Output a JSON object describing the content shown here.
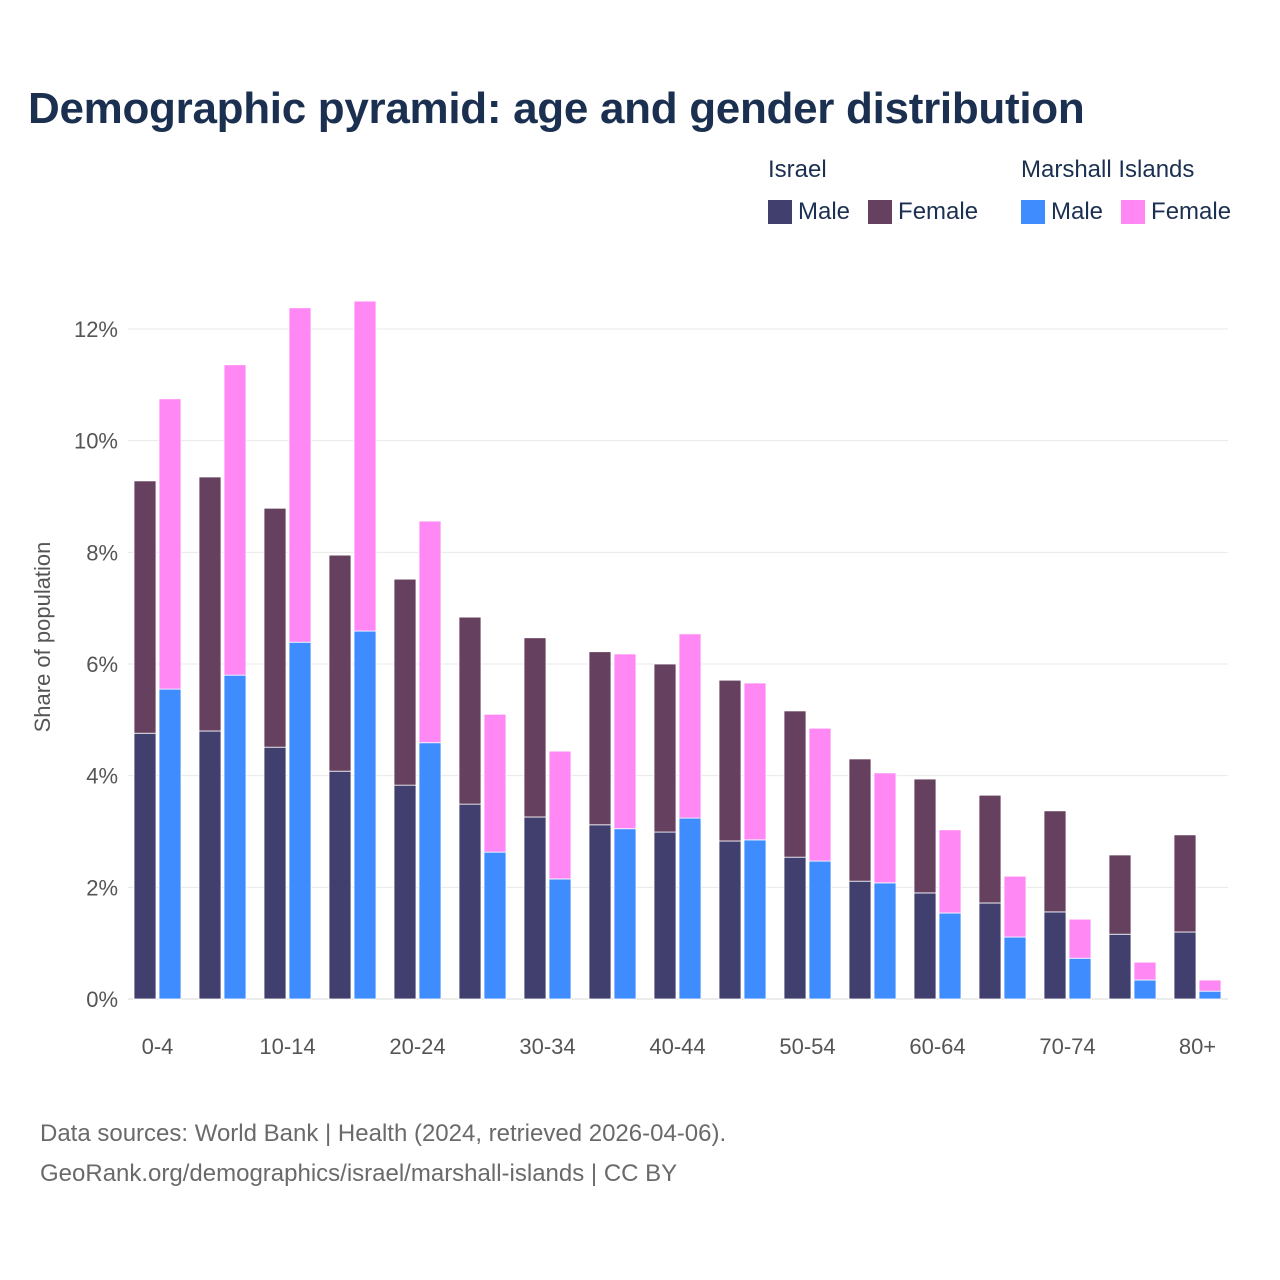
{
  "chart_data": {
    "type": "bar",
    "title": "Demographic pyramid: age and gender distribution",
    "ylabel": "Share of population",
    "xlabel": "",
    "ylim": [
      0,
      12.5
    ],
    "y_ticks": [
      0,
      2,
      4,
      6,
      8,
      10,
      12
    ],
    "y_tick_labels": [
      "0%",
      "2%",
      "4%",
      "6%",
      "8%",
      "10%",
      "12%"
    ],
    "grid": true,
    "legend_placement": "top-right",
    "categories": [
      "0-4",
      "5-9",
      "10-14",
      "15-19",
      "20-24",
      "25-29",
      "30-34",
      "35-39",
      "40-44",
      "45-49",
      "50-54",
      "55-59",
      "60-64",
      "65-69",
      "70-74",
      "75-79",
      "80+"
    ],
    "x_tick_labels": [
      "0-4",
      "10-14",
      "20-24",
      "30-34",
      "40-44",
      "50-54",
      "60-64",
      "70-74",
      "80+"
    ],
    "stacked": true,
    "countries": [
      {
        "name": "Israel",
        "series": [
          {
            "name": "Male",
            "color": "#413f6e",
            "values": [
              4.76,
              4.8,
              4.51,
              4.08,
              3.83,
              3.49,
              3.26,
              3.12,
              2.99,
              2.83,
              2.54,
              2.11,
              1.9,
              1.72,
              1.56,
              1.16,
              1.2
            ]
          },
          {
            "name": "Female",
            "color": "#66405f",
            "values": [
              4.52,
              4.55,
              4.28,
              3.87,
              3.69,
              3.35,
              3.21,
              3.1,
              3.01,
              2.88,
              2.62,
              2.19,
              2.04,
              1.93,
              1.81,
              1.42,
              1.74
            ]
          }
        ]
      },
      {
        "name": "Marshall Islands",
        "series": [
          {
            "name": "Male",
            "color": "#3f8cff",
            "values": [
              5.55,
              5.8,
              6.39,
              6.59,
              4.59,
              2.63,
              2.15,
              3.05,
              3.24,
              2.85,
              2.47,
              2.08,
              1.54,
              1.11,
              0.73,
              0.34,
              0.14
            ]
          },
          {
            "name": "Female",
            "color": "#ff88f5",
            "values": [
              5.2,
              5.56,
              5.99,
              5.91,
              3.97,
              2.47,
              2.29,
              3.13,
              3.3,
              2.81,
              2.38,
              1.97,
              1.49,
              1.09,
              0.7,
              0.32,
              0.2
            ]
          }
        ]
      }
    ]
  },
  "footer": {
    "line1": "Data sources: World Bank | Health (2024, retrieved 2026-04-06).",
    "line2": "GeoRank.org/demographics/israel/marshall-islands | CC BY"
  }
}
